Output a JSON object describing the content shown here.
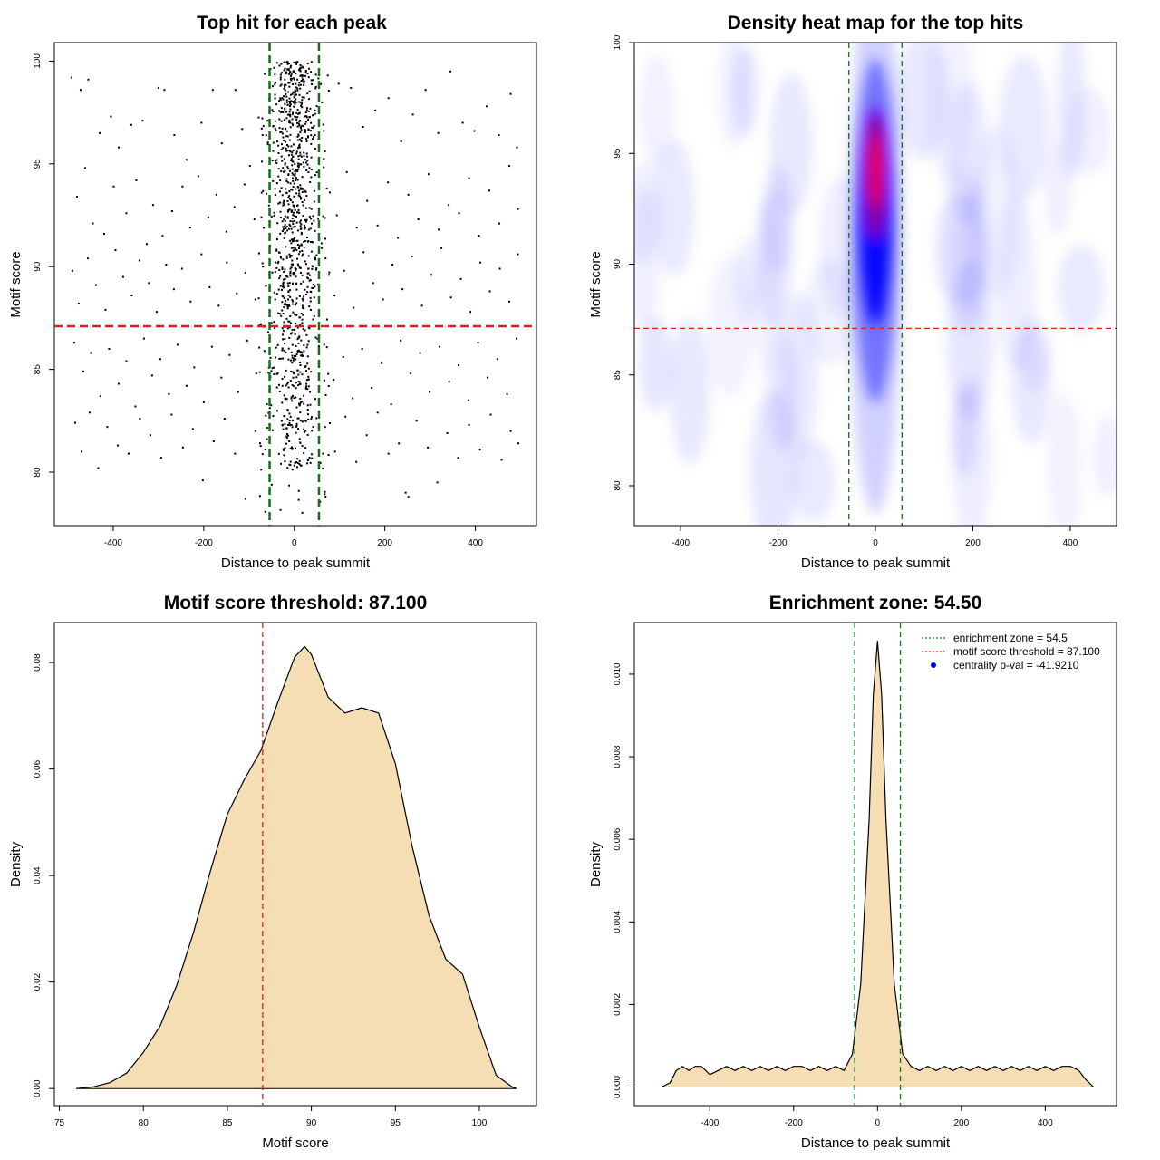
{
  "colors": {
    "threshold_line": "#e11a1a",
    "zone_line": "#146e14",
    "density_fill": "#f5deb3",
    "heat_low": "#ffffff",
    "heat_mid": "#0000ff",
    "heat_high": "#ff0000",
    "point": "#000000",
    "pval_marker": "#0000ff"
  },
  "chart_data": [
    {
      "id": "scatter",
      "type": "scatter",
      "title": "Top hit for each peak",
      "xlabel": "Distance to peak summit",
      "ylabel": "Motif score",
      "xlim": [
        -530,
        535
      ],
      "ylim": [
        77.4,
        100.9
      ],
      "xticks": [
        -400,
        -200,
        0,
        200,
        400
      ],
      "xtick_labels": [
        "-400",
        "-200",
        "0",
        "200",
        "400"
      ],
      "yticks": [
        80,
        85,
        90,
        95,
        100
      ],
      "ytick_labels": [
        "80",
        "85",
        "90",
        "95",
        "100"
      ],
      "threshold": 87.1,
      "zone": [
        -54.5,
        54.5
      ],
      "outer_points": [
        [
          -492,
          99.2
        ],
        [
          -472,
          98.6
        ],
        [
          -455,
          99.1
        ],
        [
          -430,
          96.5
        ],
        [
          -405,
          97.3
        ],
        [
          -388,
          95.8
        ],
        [
          -360,
          96.9
        ],
        [
          -335,
          97.1
        ],
        [
          -300,
          98.7
        ],
        [
          -287,
          98.6
        ],
        [
          -265,
          96.4
        ],
        [
          -238,
          95.2
        ],
        [
          -205,
          97.0
        ],
        [
          -180,
          98.6
        ],
        [
          -160,
          96.0
        ],
        [
          -130,
          98.6
        ],
        [
          -115,
          96.7
        ],
        [
          -98,
          94.9
        ],
        [
          -70,
          96.4
        ],
        [
          -480,
          93.4
        ],
        [
          -462,
          94.8
        ],
        [
          -445,
          92.1
        ],
        [
          -420,
          91.6
        ],
        [
          -399,
          93.9
        ],
        [
          -371,
          92.6
        ],
        [
          -349,
          94.2
        ],
        [
          -326,
          91.1
        ],
        [
          -312,
          93.0
        ],
        [
          -291,
          91.5
        ],
        [
          -270,
          92.7
        ],
        [
          -247,
          93.9
        ],
        [
          -230,
          91.9
        ],
        [
          -212,
          94.4
        ],
        [
          -190,
          92.4
        ],
        [
          -172,
          93.5
        ],
        [
          -150,
          91.7
        ],
        [
          -132,
          92.9
        ],
        [
          -110,
          94.0
        ],
        [
          -88,
          92.3
        ],
        [
          -72,
          93.6
        ],
        [
          -490,
          89.8
        ],
        [
          -476,
          88.2
        ],
        [
          -456,
          90.4
        ],
        [
          -438,
          89.1
        ],
        [
          -417,
          87.9
        ],
        [
          -395,
          90.8
        ],
        [
          -378,
          89.5
        ],
        [
          -359,
          88.6
        ],
        [
          -342,
          90.3
        ],
        [
          -321,
          89.2
        ],
        [
          -304,
          87.8
        ],
        [
          -283,
          90.1
        ],
        [
          -266,
          88.9
        ],
        [
          -248,
          89.9
        ],
        [
          -229,
          88.3
        ],
        [
          -205,
          90.6
        ],
        [
          -187,
          89.0
        ],
        [
          -167,
          88.1
        ],
        [
          -149,
          90.2
        ],
        [
          -127,
          88.7
        ],
        [
          -108,
          89.7
        ],
        [
          -86,
          88.4
        ],
        [
          -69,
          90.0
        ],
        [
          -486,
          86.3
        ],
        [
          -466,
          84.9
        ],
        [
          -449,
          85.8
        ],
        [
          -428,
          83.7
        ],
        [
          -409,
          86.0
        ],
        [
          -388,
          84.3
        ],
        [
          -371,
          85.4
        ],
        [
          -351,
          83.2
        ],
        [
          -332,
          86.5
        ],
        [
          -314,
          84.7
        ],
        [
          -296,
          85.5
        ],
        [
          -277,
          83.8
        ],
        [
          -258,
          86.2
        ],
        [
          -238,
          84.2
        ],
        [
          -221,
          85.1
        ],
        [
          -200,
          83.4
        ],
        [
          -182,
          86.1
        ],
        [
          -161,
          84.6
        ],
        [
          -143,
          85.7
        ],
        [
          -124,
          83.9
        ],
        [
          -104,
          86.4
        ],
        [
          -84,
          84.8
        ],
        [
          -66,
          85.9
        ],
        [
          -484,
          82.4
        ],
        [
          -470,
          81.0
        ],
        [
          -452,
          82.9
        ],
        [
          -433,
          80.2
        ],
        [
          -413,
          82.2
        ],
        [
          -390,
          81.3
        ],
        [
          -366,
          80.9
        ],
        [
          -341,
          82.6
        ],
        [
          -318,
          81.8
        ],
        [
          -294,
          80.7
        ],
        [
          -271,
          82.8
        ],
        [
          -246,
          81.2
        ],
        [
          -224,
          82.1
        ],
        [
          -202,
          79.6
        ],
        [
          -178,
          81.5
        ],
        [
          -154,
          82.6
        ],
        [
          -131,
          80.9
        ],
        [
          -108,
          78.7
        ],
        [
          -86,
          82.0
        ],
        [
          -64,
          81.1
        ],
        [
          74,
          99.3
        ],
        [
          98,
          98.9
        ],
        [
          125,
          98.7
        ],
        [
          152,
          96.8
        ],
        [
          179,
          97.6
        ],
        [
          208,
          98.2
        ],
        [
          236,
          96.1
        ],
        [
          262,
          97.4
        ],
        [
          290,
          98.6
        ],
        [
          318,
          96.5
        ],
        [
          345,
          99.5
        ],
        [
          372,
          97.0
        ],
        [
          398,
          96.6
        ],
        [
          425,
          97.8
        ],
        [
          452,
          96.4
        ],
        [
          478,
          98.4
        ],
        [
          492,
          95.8
        ],
        [
          72,
          93.8
        ],
        [
          94,
          92.5
        ],
        [
          116,
          94.6
        ],
        [
          138,
          91.9
        ],
        [
          161,
          93.2
        ],
        [
          184,
          92.0
        ],
        [
          207,
          94.1
        ],
        [
          229,
          91.4
        ],
        [
          252,
          93.5
        ],
        [
          274,
          92.3
        ],
        [
          297,
          94.5
        ],
        [
          319,
          91.8
        ],
        [
          341,
          93.0
        ],
        [
          364,
          92.6
        ],
        [
          386,
          94.3
        ],
        [
          408,
          91.5
        ],
        [
          431,
          93.7
        ],
        [
          453,
          92.1
        ],
        [
          475,
          94.9
        ],
        [
          494,
          92.8
        ],
        [
          69,
          90.4
        ],
        [
          89,
          88.6
        ],
        [
          110,
          89.8
        ],
        [
          131,
          88.0
        ],
        [
          153,
          90.7
        ],
        [
          174,
          89.2
        ],
        [
          196,
          88.4
        ],
        [
          217,
          90.1
        ],
        [
          239,
          88.9
        ],
        [
          260,
          90.5
        ],
        [
          282,
          88.1
        ],
        [
          303,
          89.6
        ],
        [
          325,
          90.9
        ],
        [
          346,
          88.5
        ],
        [
          368,
          89.4
        ],
        [
          389,
          87.8
        ],
        [
          411,
          90.2
        ],
        [
          432,
          88.8
        ],
        [
          454,
          89.9
        ],
        [
          475,
          88.3
        ],
        [
          494,
          90.6
        ],
        [
          66,
          86.2
        ],
        [
          87,
          84.5
        ],
        [
          108,
          85.6
        ],
        [
          129,
          83.6
        ],
        [
          150,
          86.0
        ],
        [
          171,
          84.1
        ],
        [
          193,
          85.3
        ],
        [
          214,
          83.3
        ],
        [
          235,
          86.4
        ],
        [
          257,
          84.8
        ],
        [
          278,
          85.8
        ],
        [
          299,
          83.9
        ],
        [
          321,
          86.1
        ],
        [
          342,
          84.4
        ],
        [
          363,
          85.2
        ],
        [
          385,
          83.5
        ],
        [
          406,
          86.3
        ],
        [
          427,
          84.6
        ],
        [
          449,
          85.5
        ],
        [
          470,
          83.8
        ],
        [
          491,
          86.5
        ],
        [
          68,
          82.2
        ],
        [
          90,
          81.0
        ],
        [
          113,
          82.7
        ],
        [
          137,
          80.5
        ],
        [
          160,
          81.8
        ],
        [
          184,
          82.9
        ],
        [
          208,
          80.9
        ],
        [
          231,
          81.4
        ],
        [
          246,
          79.0
        ],
        [
          252,
          78.8
        ],
        [
          270,
          82.5
        ],
        [
          295,
          81.2
        ],
        [
          316,
          79.5
        ],
        [
          338,
          81.9
        ],
        [
          362,
          80.7
        ],
        [
          386,
          82.3
        ],
        [
          410,
          81.1
        ],
        [
          434,
          82.8
        ],
        [
          458,
          80.6
        ],
        [
          478,
          82.0
        ],
        [
          495,
          81.4
        ]
      ]
    },
    {
      "id": "heatmap",
      "type": "heatmap",
      "title": "Density heat map for the top hits",
      "xlabel": "Distance to peak summit",
      "ylabel": "Motif score",
      "xlim": [
        -495,
        495
      ],
      "ylim": [
        78.2,
        100
      ],
      "xticks": [
        -400,
        -200,
        0,
        200,
        400
      ],
      "xtick_labels": [
        "-400",
        "-200",
        "0",
        "200",
        "400"
      ],
      "yticks": [
        80,
        85,
        90,
        95,
        100
      ],
      "ytick_labels": [
        "80",
        "85",
        "90",
        "95",
        "100"
      ],
      "threshold": 87.1,
      "zone": [
        -54.5,
        54.5
      ],
      "hotspot": {
        "x": 0,
        "y": 94
      }
    },
    {
      "id": "score-density",
      "type": "area",
      "title": "Motif score threshold: 87.100",
      "xlabel": "Motif score",
      "ylabel": "Density",
      "xlim": [
        74.7,
        103.4
      ],
      "ylim": [
        -0.0032,
        0.0875
      ],
      "xticks": [
        75,
        80,
        85,
        90,
        95,
        100
      ],
      "xtick_labels": [
        "75",
        "80",
        "85",
        "90",
        "95",
        "100"
      ],
      "yticks": [
        0,
        0.02,
        0.04,
        0.06,
        0.08
      ],
      "ytick_labels": [
        "0.00",
        "0.02",
        "0.04",
        "0.06",
        "0.08"
      ],
      "threshold": 87.1,
      "x": [
        76,
        77,
        78,
        79,
        80,
        81,
        82,
        83,
        84,
        85,
        86,
        87,
        88,
        89,
        89.6,
        90,
        91,
        92,
        93,
        94,
        95,
        96,
        97,
        98,
        99,
        100,
        101,
        102,
        102.2
      ],
      "y": [
        0,
        0.0003,
        0.0011,
        0.0029,
        0.0068,
        0.0118,
        0.0195,
        0.0295,
        0.041,
        0.0515,
        0.058,
        0.0635,
        0.0725,
        0.081,
        0.083,
        0.0815,
        0.0735,
        0.0705,
        0.0715,
        0.0705,
        0.061,
        0.0455,
        0.0325,
        0.0243,
        0.0215,
        0.0115,
        0.0025,
        0.0002,
        0
      ]
    },
    {
      "id": "distance-density",
      "type": "area",
      "title": "Enrichment zone: 54.50",
      "xlabel": "Distance to peak summit",
      "ylabel": "Density",
      "xlim": [
        -580,
        570
      ],
      "ylim": [
        -0.00045,
        0.01125
      ],
      "xticks": [
        -400,
        -200,
        0,
        200,
        400
      ],
      "xtick_labels": [
        "-400",
        "-200",
        "0",
        "200",
        "400"
      ],
      "yticks": [
        0,
        0.002,
        0.004,
        0.006,
        0.008,
        0.01
      ],
      "ytick_labels": [
        "0.000",
        "0.002",
        "0.004",
        "0.006",
        "0.008",
        "0.010"
      ],
      "zone": [
        -54.5,
        54.5
      ],
      "legend": [
        "enrichment zone = 54.5",
        "motif score threshold = 87.100",
        "centrality p-val = -41.9210"
      ],
      "legend_position": "top-right",
      "x": [
        -515,
        -495,
        -480,
        -465,
        -450,
        -435,
        -420,
        -400,
        -380,
        -360,
        -340,
        -320,
        -300,
        -280,
        -260,
        -240,
        -220,
        -200,
        -180,
        -160,
        -140,
        -120,
        -100,
        -80,
        -60,
        -40,
        -20,
        -10,
        0,
        10,
        20,
        40,
        60,
        80,
        100,
        120,
        140,
        160,
        180,
        200,
        220,
        240,
        260,
        280,
        300,
        320,
        340,
        360,
        380,
        400,
        420,
        440,
        460,
        480,
        495,
        505,
        515
      ],
      "y": [
        0,
        0.0001,
        0.0004,
        0.0005,
        0.0004,
        0.0005,
        0.0005,
        0.0003,
        0.0004,
        0.0005,
        0.0004,
        0.0005,
        0.0004,
        0.0005,
        0.0004,
        0.0005,
        0.0004,
        0.0005,
        0.0005,
        0.0004,
        0.0005,
        0.0004,
        0.0005,
        0.0004,
        0.0008,
        0.0025,
        0.0065,
        0.0095,
        0.0108,
        0.0095,
        0.0065,
        0.0025,
        0.0008,
        0.0005,
        0.0004,
        0.0005,
        0.0004,
        0.0005,
        0.0004,
        0.0005,
        0.0004,
        0.0005,
        0.0004,
        0.0005,
        0.0004,
        0.0005,
        0.0004,
        0.0005,
        0.0004,
        0.0005,
        0.0004,
        0.0005,
        0.0005,
        0.0004,
        0.0002,
        0.0001,
        0
      ]
    }
  ]
}
